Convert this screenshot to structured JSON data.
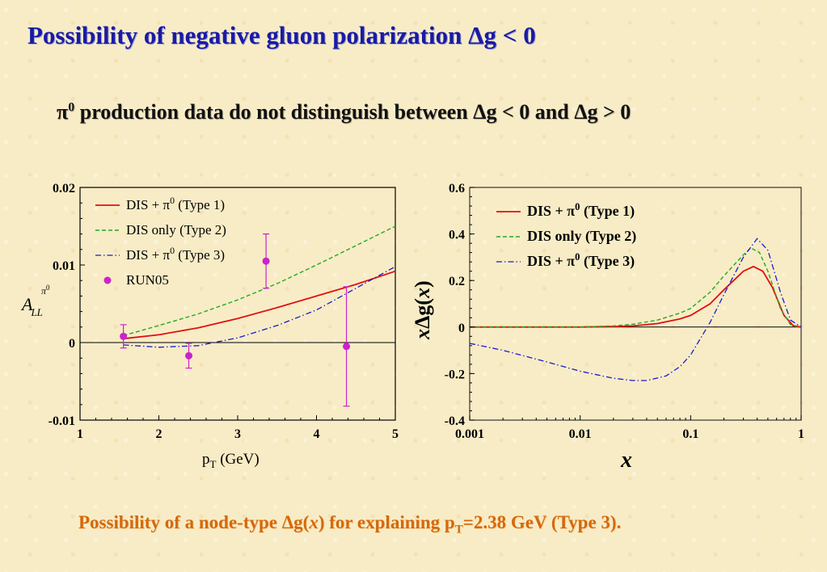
{
  "slide": {
    "title": "Possibility of negative gluon polarization Δg < 0",
    "subtitle_a": "π",
    "subtitle_sup": "0",
    "subtitle_b": " production data do not distinguish between Δg < 0 and Δg > 0",
    "caption_a": "Possibility of a node-type Δg(",
    "caption_x": "x",
    "caption_b": ") for explaining p",
    "caption_sub": "T",
    "caption_c": "=2.38 GeV (Type 3)."
  },
  "colors": {
    "title": "#1a1aa6",
    "caption": "#d6680a",
    "type1": "#e01010",
    "type2": "#22aa22",
    "type3": "#1a1ad0",
    "run05": "#cc22cc"
  },
  "chart_data": [
    {
      "type": "line",
      "xlabel": "pT (GeV)",
      "ylabel": "A_LL^π0",
      "xlim": [
        1,
        5
      ],
      "ylim": [
        -0.01,
        0.02
      ],
      "x_ticks": [
        "1",
        "2",
        "3",
        "4",
        "5"
      ],
      "y_ticks": [
        "-0.01",
        "0",
        "0.01",
        "0.02"
      ],
      "legend_position": "top-left",
      "legend": [
        {
          "label": "DIS + π",
          "sup": "0",
          "rest": " (Type 1)"
        },
        {
          "label": "DIS only (Type 2)",
          "sup": "",
          "rest": ""
        },
        {
          "label": "DIS + π",
          "sup": "0",
          "rest": " (Type 3)"
        },
        {
          "label": "RUN05",
          "sup": "",
          "rest": ""
        }
      ],
      "series": [
        {
          "name": "DIS + π0 (Type 1)",
          "style": "solid",
          "x": [
            1.55,
            2.0,
            2.5,
            3.0,
            3.5,
            4.0,
            4.5,
            5.0
          ],
          "y": [
            0.0005,
            0.001,
            0.0019,
            0.0031,
            0.0045,
            0.006,
            0.0075,
            0.0092
          ]
        },
        {
          "name": "DIS only (Type 2)",
          "style": "dashed",
          "x": [
            1.55,
            2.0,
            2.5,
            3.0,
            3.5,
            4.0,
            4.5,
            5.0
          ],
          "y": [
            0.0009,
            0.0022,
            0.0037,
            0.0055,
            0.0076,
            0.01,
            0.0125,
            0.015
          ]
        },
        {
          "name": "DIS + π0 (Type 3)",
          "style": "dashdot",
          "x": [
            1.55,
            2.0,
            2.5,
            3.0,
            3.5,
            4.0,
            4.5,
            5.0
          ],
          "y": [
            -0.0003,
            -0.0006,
            -0.0004,
            0.0006,
            0.0022,
            0.0042,
            0.007,
            0.0098
          ]
        },
        {
          "name": "RUN05",
          "style": "points",
          "x": [
            1.55,
            2.38,
            3.36,
            4.38
          ],
          "y": [
            0.0008,
            -0.0017,
            0.0105,
            -0.0005
          ],
          "err": [
            0.0015,
            0.0016,
            0.0035,
            0.0077
          ]
        }
      ]
    },
    {
      "type": "line",
      "xlabel": "x",
      "ylabel": "xΔg(x)",
      "xscale": "log",
      "xlim": [
        0.001,
        1
      ],
      "ylim": [
        -0.4,
        0.6
      ],
      "x_ticks": [
        "0.001",
        "0.01",
        "0.1",
        "1"
      ],
      "y_ticks": [
        "-0.4",
        "-0.2",
        "0",
        "0.2",
        "0.4",
        "0.6"
      ],
      "legend_position": "top-left",
      "legend": [
        {
          "label": "DIS + π",
          "sup": "0",
          "rest": " (Type 1)"
        },
        {
          "label": "DIS only (Type 2)",
          "sup": "",
          "rest": ""
        },
        {
          "label": "DIS + π",
          "sup": "0",
          "rest": " (Type 3)"
        }
      ],
      "series": [
        {
          "name": "DIS + π0 (Type 1)",
          "style": "solid",
          "x": [
            0.001,
            0.01,
            0.02,
            0.03,
            0.05,
            0.08,
            0.1,
            0.15,
            0.2,
            0.3,
            0.37,
            0.45,
            0.55,
            0.7,
            0.85,
            1.0
          ],
          "y": [
            0.0,
            0.0,
            0.002,
            0.005,
            0.015,
            0.035,
            0.05,
            0.1,
            0.16,
            0.24,
            0.26,
            0.24,
            0.17,
            0.05,
            0.005,
            0.0
          ]
        },
        {
          "name": "DIS only (Type 2)",
          "style": "dashed",
          "x": [
            0.001,
            0.01,
            0.02,
            0.03,
            0.05,
            0.08,
            0.1,
            0.15,
            0.2,
            0.3,
            0.35,
            0.42,
            0.5,
            0.65,
            0.8,
            1.0
          ],
          "y": [
            0.0,
            0.0,
            0.005,
            0.012,
            0.03,
            0.06,
            0.08,
            0.15,
            0.22,
            0.31,
            0.34,
            0.32,
            0.24,
            0.08,
            0.01,
            0.0
          ]
        },
        {
          "name": "DIS + π0 (Type 3)",
          "style": "dashdot",
          "x": [
            0.001,
            0.002,
            0.005,
            0.01,
            0.02,
            0.03,
            0.04,
            0.06,
            0.08,
            0.1,
            0.15,
            0.2,
            0.3,
            0.4,
            0.5,
            0.65,
            0.8,
            1.0
          ],
          "y": [
            -0.07,
            -0.1,
            -0.15,
            -0.19,
            -0.22,
            -0.23,
            -0.23,
            -0.21,
            -0.17,
            -0.12,
            0.02,
            0.14,
            0.3,
            0.38,
            0.33,
            0.15,
            0.03,
            0.0
          ]
        }
      ]
    }
  ]
}
